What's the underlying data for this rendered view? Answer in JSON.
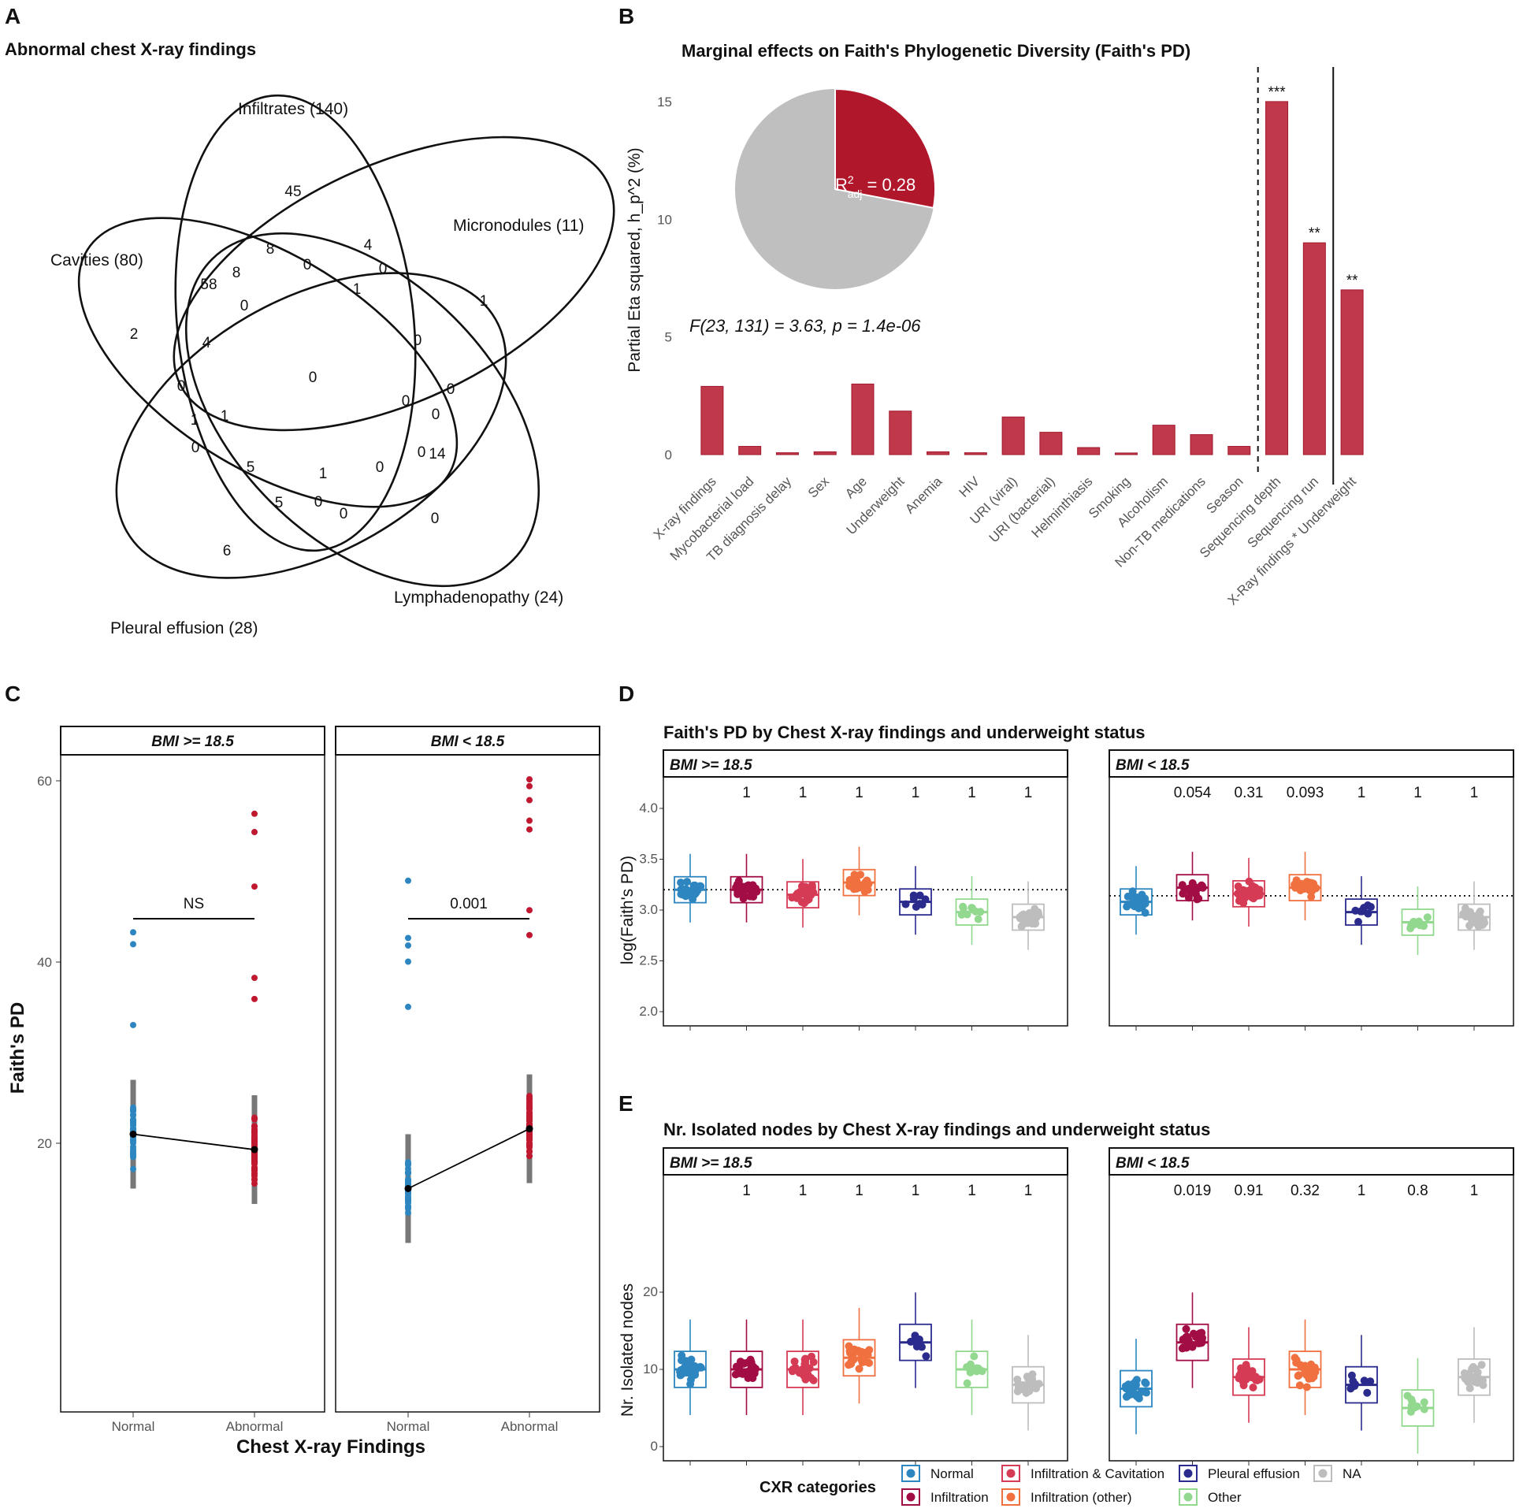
{
  "panels": {
    "A": {
      "letter": "A",
      "title": "Abnormal chest X-ray findings"
    },
    "B": {
      "letter": "B"
    },
    "C": {
      "letter": "C"
    },
    "D": {
      "letter": "D"
    },
    "E": {
      "letter": "E"
    }
  },
  "venn": {
    "sets": [
      "Infiltrates (140)",
      "Micronodules (11)",
      "Cavities (80)",
      "Pleural effusion (28)",
      "Lymphadenopathy (24)"
    ],
    "region_values": [
      "45",
      "8",
      "0",
      "4",
      "1",
      "0",
      "58",
      "8",
      "0",
      "1",
      "2",
      "4",
      "0",
      "0",
      "0",
      "0",
      "1",
      "0",
      "0",
      "0",
      "0",
      "1",
      "5",
      "1",
      "0",
      "0",
      "5",
      "0",
      "0",
      "6",
      "14"
    ]
  },
  "chart_data": {
    "type": "bar",
    "title": "Marginal effects on Faith's Phylogenetic Diversity (Faith's PD)",
    "ylabel": "Partial Eta squared, h_p^2 (%)",
    "ylim": [
      0,
      16
    ],
    "yticks": [
      "0",
      "5",
      "10",
      "15"
    ],
    "categories": [
      "X-ray findings",
      "Mycobacterial load",
      "TB diagnosis delay",
      "Sex",
      "Age",
      "Underweight",
      "Anemia",
      "HIV",
      "URI (viral)",
      "URI (bacterial)",
      "Helminthiasis",
      "Smoking",
      "Alcoholism",
      "Non-TB medications",
      "Season",
      "Sequencing depth",
      "Sequencing run",
      "X-Ray findings * Underweight"
    ],
    "values": [
      2.9,
      0.35,
      0.08,
      0.12,
      3.0,
      1.85,
      0.12,
      0.08,
      1.6,
      0.95,
      0.3,
      0.07,
      1.25,
      0.85,
      0.35,
      15.0,
      9.0,
      7.0
    ],
    "significance": {
      "15": "***",
      "16": "**",
      "17": "**"
    },
    "pie": {
      "r2_label": "R",
      "r2_sup": "2",
      "r2_sub": "adj",
      "r2_value": " = 0.28",
      "fraction": 0.28
    },
    "f_stat": "F(23, 131) = 3.63, p = 1.4e-06",
    "color": "#c0394a"
  },
  "panel_c": {
    "ylabel": "Faith's PD",
    "xlabel": "Chest X-ray Findings",
    "yticks": [
      "20",
      "40",
      "60"
    ],
    "facets": [
      {
        "strip": "BMI >= 18.5",
        "categories": [
          "Normal",
          "Abnormal"
        ],
        "sig": "NS",
        "means": [
          21,
          19.3
        ]
      },
      {
        "strip": "BMI < 18.5",
        "categories": [
          "Normal",
          "Abnormal"
        ],
        "sig": "0.001",
        "means": [
          15,
          21.6
        ]
      }
    ],
    "colors": {
      "normal": "#2e86c1",
      "abnormal": "#c0182f"
    }
  },
  "panel_d": {
    "title": "Faith's PD by Chest X-ray findings and underweight status",
    "ylabel": "log(Faith's PD)",
    "yticks": [
      "2.0",
      "2.5",
      "3.0",
      "3.5",
      "4.0"
    ],
    "ref_line": 3.2,
    "facets": [
      {
        "strip": "BMI >= 18.5",
        "pvals": [
          "1",
          "1",
          "1",
          "1",
          "1",
          "1"
        ]
      },
      {
        "strip": "BMI < 18.5",
        "pvals": [
          "0.054",
          "0.31",
          "0.093",
          "1",
          "1",
          "1"
        ]
      }
    ]
  },
  "panel_e": {
    "title": "Nr. Isolated nodes by Chest X-ray findings and underweight status",
    "ylabel": "Nr. Isolated nodes",
    "yticks": [
      "0",
      "10",
      "20"
    ],
    "facets": [
      {
        "strip": "BMI >= 18.5",
        "pvals": [
          "1",
          "1",
          "1",
          "1",
          "1",
          "1"
        ]
      },
      {
        "strip": "BMI < 18.5",
        "pvals": [
          "0.019",
          "0.91",
          "0.32",
          "1",
          "0.8",
          "1"
        ]
      }
    ]
  },
  "legend": {
    "title": "CXR categories",
    "items": [
      "Normal",
      "Infiltration",
      "Infiltration & Cavitation",
      "Infiltration (other)",
      "Pleural effusion",
      "Other",
      "NA"
    ]
  },
  "category_colors": [
    "#2e86c1",
    "#a30d45",
    "#d63b55",
    "#f07040",
    "#2a2b8c",
    "#93d88f",
    "#bdbdbd"
  ]
}
